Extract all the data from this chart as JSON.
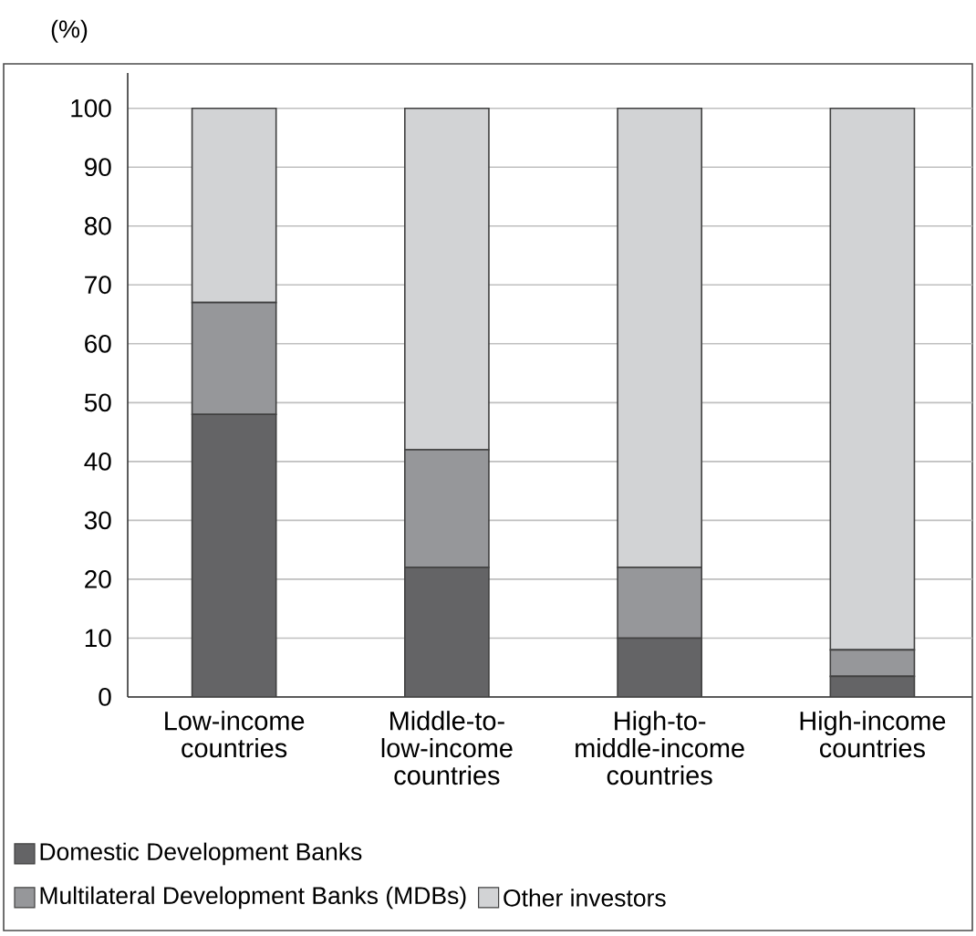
{
  "chart_data": {
    "type": "bar",
    "stacked": true,
    "ylabel": "(%)",
    "categories": [
      "Low-income countries",
      "Middle-to-low-income countries",
      "High-to-middle-income countries",
      "High-income countries"
    ],
    "series": [
      {
        "name": "Domestic Development Banks",
        "color": "#646466",
        "values": [
          48,
          22,
          10,
          3.5
        ]
      },
      {
        "name": "Multilateral Development Banks (MDBs)",
        "color": "#96979a",
        "values": [
          19,
          20,
          12,
          4.5
        ]
      },
      {
        "name": "Other investors",
        "color": "#d2d3d5",
        "values": [
          33,
          58,
          78,
          92
        ]
      }
    ],
    "ylim": [
      0,
      106
    ],
    "yticks": [
      0,
      10,
      20,
      30,
      40,
      50,
      60,
      70,
      80,
      90,
      100
    ],
    "grid": "y",
    "legend": "bottom"
  }
}
